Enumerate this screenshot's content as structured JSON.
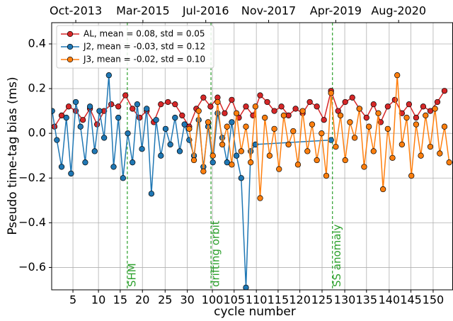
{
  "chart_data": {
    "type": "line",
    "xlabel": "cycle number",
    "ylabel": "Pseudo time-tag bias (ms)",
    "xlim": [
      2013.24,
      2021.73
    ],
    "ylim": [
      -0.7,
      0.495
    ],
    "grid": true,
    "legend": "upper left",
    "xticks": [
      {
        "value": 2013.69,
        "label": "5"
      },
      {
        "value": 2014.23,
        "label": "10"
      },
      {
        "value": 2014.69,
        "label": "15"
      },
      {
        "value": 2015.16,
        "label": "20"
      },
      {
        "value": 2015.64,
        "label": "25"
      },
      {
        "value": 2016.11,
        "label": "30"
      },
      {
        "value": 2016.64,
        "label": "100"
      },
      {
        "value": 2017.1,
        "label": "105"
      },
      {
        "value": 2017.57,
        "label": "110"
      },
      {
        "value": 2018.03,
        "label": "115"
      },
      {
        "value": 2018.49,
        "label": "120"
      },
      {
        "value": 2018.96,
        "label": "125"
      },
      {
        "value": 2019.44,
        "label": "130"
      },
      {
        "value": 2019.9,
        "label": "135"
      },
      {
        "value": 2020.38,
        "label": "140"
      },
      {
        "value": 2020.84,
        "label": "145"
      },
      {
        "value": 2021.31,
        "label": "150"
      }
    ],
    "top_xticks": [
      {
        "value": 2013.75,
        "label": "Oct-2013"
      },
      {
        "value": 2015.17,
        "label": "Mar-2015"
      },
      {
        "value": 2016.5,
        "label": "Jul-2016"
      },
      {
        "value": 2017.83,
        "label": "Nov-2017"
      },
      {
        "value": 2019.25,
        "label": "Apr-2019"
      },
      {
        "value": 2020.58,
        "label": "Aug-2020"
      }
    ],
    "yticks": [
      {
        "value": -0.6,
        "label": "−0.6"
      },
      {
        "value": -0.4,
        "label": "−0.4"
      },
      {
        "value": -0.2,
        "label": "−0.2"
      },
      {
        "value": 0,
        "label": "0.0"
      },
      {
        "value": 0.2,
        "label": "0.2"
      },
      {
        "value": 0.4,
        "label": "0.4"
      }
    ],
    "vlines": [
      {
        "x": 2014.84,
        "label": "SHM"
      },
      {
        "x": 2016.61,
        "label": "drifting orbit"
      },
      {
        "x": 2019.18,
        "label": "SS anomaly"
      }
    ],
    "vline_color": "#2ca02c",
    "series": [
      {
        "name": "AL, mean = 0.08, std = 0.05",
        "color": "#d62728",
        "x": [
          2013.3,
          2013.45,
          2013.6,
          2013.75,
          2013.9,
          2014.05,
          2014.2,
          2014.35,
          2014.5,
          2014.65,
          2014.8,
          2014.95,
          2015.1,
          2015.25,
          2015.4,
          2015.55,
          2015.7,
          2015.85,
          2016.0,
          2016.15,
          2016.3,
          2016.45,
          2016.6,
          2016.75,
          2016.9,
          2017.05,
          2017.2,
          2017.35,
          2017.5,
          2017.65,
          2017.8,
          2017.95,
          2018.1,
          2018.25,
          2018.4,
          2018.55,
          2018.7,
          2018.85,
          2019.0,
          2019.15,
          2019.3,
          2019.45,
          2019.6,
          2019.75,
          2019.9,
          2020.05,
          2020.2,
          2020.35,
          2020.5,
          2020.65,
          2020.8,
          2020.95,
          2021.1,
          2021.25,
          2021.4,
          2021.55
        ],
        "values": [
          0.03,
          0.08,
          0.12,
          0.1,
          0.06,
          0.11,
          0.04,
          0.1,
          0.13,
          0.12,
          0.17,
          0.11,
          0.07,
          0.1,
          0.05,
          0.13,
          0.14,
          0.13,
          0.08,
          0.03,
          0.11,
          0.16,
          0.12,
          0.16,
          0.09,
          0.15,
          0.07,
          0.12,
          0.08,
          0.17,
          0.14,
          0.1,
          0.12,
          0.08,
          0.11,
          0.09,
          0.14,
          0.12,
          0.06,
          0.19,
          0.1,
          0.14,
          0.16,
          0.11,
          0.07,
          0.13,
          0.05,
          0.12,
          0.15,
          0.09,
          0.13,
          0.07,
          0.12,
          0.1,
          0.14,
          0.19
        ]
      },
      {
        "name": "J2, mean = -0.03, std = 0.12",
        "color": "#1f77b4",
        "x": [
          2013.25,
          2013.35,
          2013.45,
          2013.55,
          2013.65,
          2013.75,
          2013.85,
          2013.95,
          2014.05,
          2014.15,
          2014.25,
          2014.35,
          2014.45,
          2014.55,
          2014.65,
          2014.75,
          2014.85,
          2014.95,
          2015.05,
          2015.15,
          2015.25,
          2015.35,
          2015.45,
          2015.55,
          2015.65,
          2015.75,
          2015.85,
          2015.95,
          2016.05,
          2016.15,
          2016.25,
          2016.35,
          2016.45,
          2016.55,
          2016.65,
          2016.75,
          2016.85,
          2016.95,
          2017.05,
          2017.15,
          2017.25,
          2017.35,
          2017.45,
          2017.55,
          2019.15
        ],
        "values": [
          0.1,
          -0.03,
          -0.15,
          0.07,
          -0.18,
          0.14,
          0.03,
          -0.13,
          0.12,
          -0.08,
          0.1,
          -0.02,
          0.26,
          -0.15,
          0.07,
          -0.2,
          0,
          -0.13,
          0.13,
          -0.07,
          0.11,
          -0.27,
          0.06,
          -0.1,
          0.02,
          -0.05,
          0.07,
          -0.08,
          0.04,
          -0.03,
          -0.1,
          0.06,
          -0.15,
          0.03,
          -0.13,
          0.09,
          -0.02,
          -0.13,
          0.05,
          -0.1,
          -0.2,
          -0.69,
          -0.08,
          -0.05,
          -0.03
        ]
      },
      {
        "name": "J3, mean = -0.02, std = 0.10",
        "color": "#ff7f0e",
        "x": [
          2016.15,
          2016.25,
          2016.35,
          2016.45,
          2016.55,
          2016.65,
          2016.75,
          2016.85,
          2016.95,
          2017.05,
          2017.15,
          2017.25,
          2017.35,
          2017.45,
          2017.55,
          2017.65,
          2017.75,
          2017.85,
          2017.95,
          2018.05,
          2018.15,
          2018.25,
          2018.35,
          2018.45,
          2018.55,
          2018.65,
          2018.75,
          2018.85,
          2018.95,
          2019.05,
          2019.15,
          2019.25,
          2019.35,
          2019.45,
          2019.55,
          2019.65,
          2019.75,
          2019.85,
          2019.95,
          2020.05,
          2020.15,
          2020.25,
          2020.35,
          2020.45,
          2020.55,
          2020.65,
          2020.75,
          2020.85,
          2020.95,
          2021.05,
          2021.15,
          2021.25,
          2021.35,
          2021.45,
          2021.55,
          2021.65
        ],
        "values": [
          0.02,
          -0.12,
          0.1,
          -0.17,
          0.05,
          -0.1,
          0.14,
          -0.05,
          0.03,
          -0.14,
          0.09,
          -0.08,
          0.03,
          -0.13,
          0.12,
          -0.29,
          0.07,
          -0.1,
          0.02,
          -0.16,
          0.08,
          -0.05,
          0.01,
          -0.14,
          0.1,
          -0.08,
          0.04,
          -0.12,
          0,
          -0.19,
          0.18,
          -0.06,
          0.08,
          -0.12,
          0.05,
          -0.02,
          0.11,
          -0.15,
          0.03,
          -0.08,
          0.09,
          -0.25,
          0.02,
          -0.11,
          0.26,
          -0.05,
          0.07,
          -0.19,
          0.04,
          -0.1,
          0.08,
          -0.06,
          0.11,
          -0.09,
          0.03,
          -0.13
        ]
      }
    ]
  }
}
